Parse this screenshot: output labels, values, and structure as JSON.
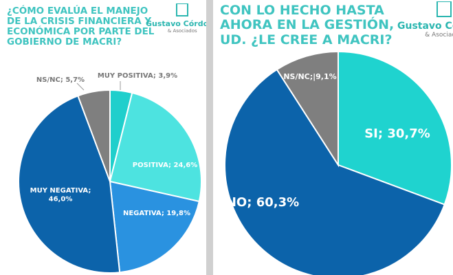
{
  "logo": {
    "name": "Gustavo Córdoba",
    "sub": "& Asociados"
  },
  "chart_data": [
    {
      "type": "pie",
      "title": "¿CÓMO EVALÚA EL MANEJO DE LA CRISIS FINANCIERA Y ECONÓMICA POR PARTE DEL GOBIERNO DE MACRI?",
      "slices": [
        {
          "label": "MUY POSITIVA; 3,9%",
          "value": 3.9,
          "color": "#1fcfcc"
        },
        {
          "label": "POSITIVA; 24,6%",
          "value": 24.6,
          "color": "#4de3e0"
        },
        {
          "label": "NEGATIVA; 19,8%",
          "value": 19.8,
          "color": "#2a92e0"
        },
        {
          "label": "MUY NEGATIVA;|46,0%",
          "value": 46.0,
          "color": "#0c63aa"
        },
        {
          "label": "NS/NC; 5,7%",
          "value": 5.7,
          "color": "#7f7f7f"
        }
      ]
    },
    {
      "type": "pie",
      "title": "CON LO HECHO HASTA AHORA EN LA GESTIÓN, UD. ¿LE CREE A MACRI?",
      "slices": [
        {
          "label": "SI; 30,7%",
          "value": 30.7,
          "color": "#1fd3cf"
        },
        {
          "label": "NO; 60,3%",
          "value": 60.3,
          "color": "#0c63aa"
        },
        {
          "label": "NS/NC;|9,1%",
          "value": 9.1,
          "color": "#7f7f7f"
        }
      ]
    }
  ]
}
